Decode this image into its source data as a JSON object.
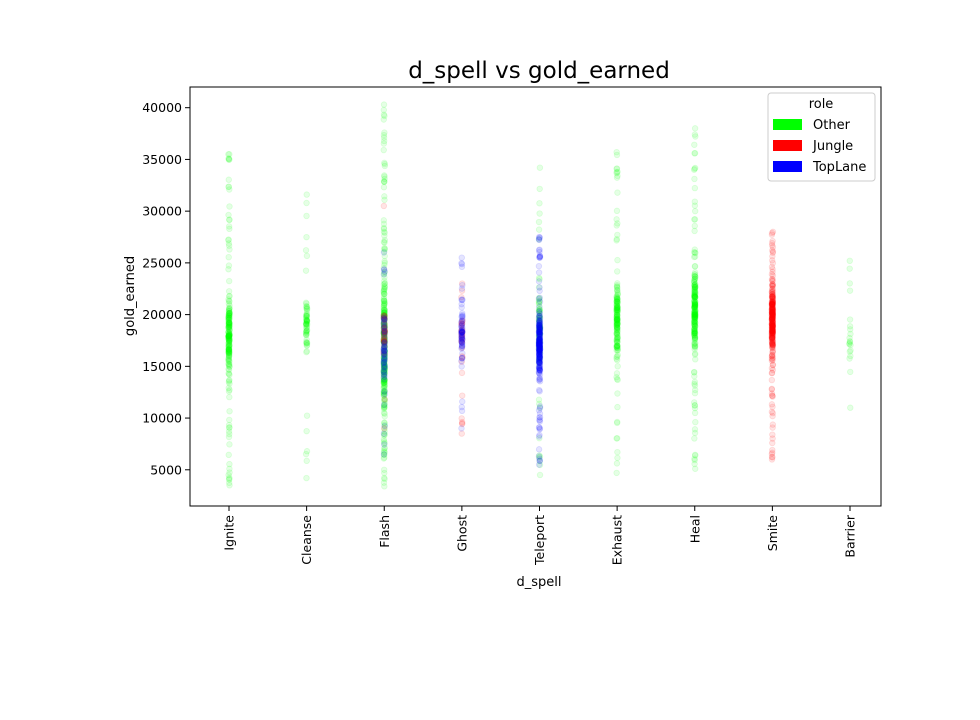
{
  "chart_data": {
    "type": "scatter",
    "title": "d_spell vs gold_earned",
    "xlabel": "d_spell",
    "ylabel": "gold_earned",
    "categories": [
      "Ignite",
      "Cleanse",
      "Flash",
      "Ghost",
      "Teleport",
      "Exhaust",
      "Heal",
      "Smite",
      "Barrier"
    ],
    "ylim": [
      1500,
      42000
    ],
    "yticks": [
      5000,
      10000,
      15000,
      20000,
      25000,
      30000,
      35000,
      40000
    ],
    "grid": false,
    "legend": {
      "title": "role",
      "placement": "top-right",
      "entries": [
        {
          "label": "Other",
          "color": "#00ff00"
        },
        {
          "label": "Jungle",
          "color": "#ff0000"
        },
        {
          "label": "TopLane",
          "color": "#0000ff"
        }
      ]
    },
    "series": [
      {
        "name": "Other",
        "color": "#00ff00",
        "distributions": [
          {
            "category": "Ignite",
            "count": 220,
            "min": 3500,
            "max": 35500,
            "core_min": 12500,
            "core_max": 23500
          },
          {
            "category": "Cleanse",
            "count": 70,
            "min": 4200,
            "max": 31600,
            "core_min": 15000,
            "core_max": 23500
          },
          {
            "category": "Flash",
            "count": 320,
            "min": 3400,
            "max": 40300,
            "core_min": 6000,
            "core_max": 28500
          },
          {
            "category": "Teleport",
            "count": 90,
            "min": 4500,
            "max": 34200,
            "core_min": 13000,
            "core_max": 24000
          },
          {
            "category": "Exhaust",
            "count": 180,
            "min": 4700,
            "max": 35700,
            "core_min": 14000,
            "core_max": 25000
          },
          {
            "category": "Heal",
            "count": 240,
            "min": 5100,
            "max": 38000,
            "core_min": 15000,
            "core_max": 26000
          },
          {
            "category": "Barrier",
            "count": 20,
            "min": 11000,
            "max": 25200,
            "core_min": 14500,
            "core_max": 21000
          }
        ]
      },
      {
        "name": "Jungle",
        "color": "#ff0000",
        "distributions": [
          {
            "category": "Flash",
            "count": 40,
            "min": 9000,
            "max": 30500,
            "core_min": 14000,
            "core_max": 22000
          },
          {
            "category": "Ghost",
            "count": 35,
            "min": 8500,
            "max": 23000,
            "core_min": 15000,
            "core_max": 20500
          },
          {
            "category": "Smite",
            "count": 300,
            "min": 6000,
            "max": 28000,
            "core_min": 14000,
            "core_max": 25000
          }
        ]
      },
      {
        "name": "TopLane",
        "color": "#0000ff",
        "distributions": [
          {
            "category": "Flash",
            "count": 70,
            "min": 6500,
            "max": 26000,
            "core_min": 12500,
            "core_max": 21500
          },
          {
            "category": "Ghost",
            "count": 70,
            "min": 9000,
            "max": 25500,
            "core_min": 14000,
            "core_max": 22000
          },
          {
            "category": "Teleport",
            "count": 260,
            "min": 5500,
            "max": 27500,
            "core_min": 12500,
            "core_max": 21500
          }
        ]
      }
    ]
  }
}
